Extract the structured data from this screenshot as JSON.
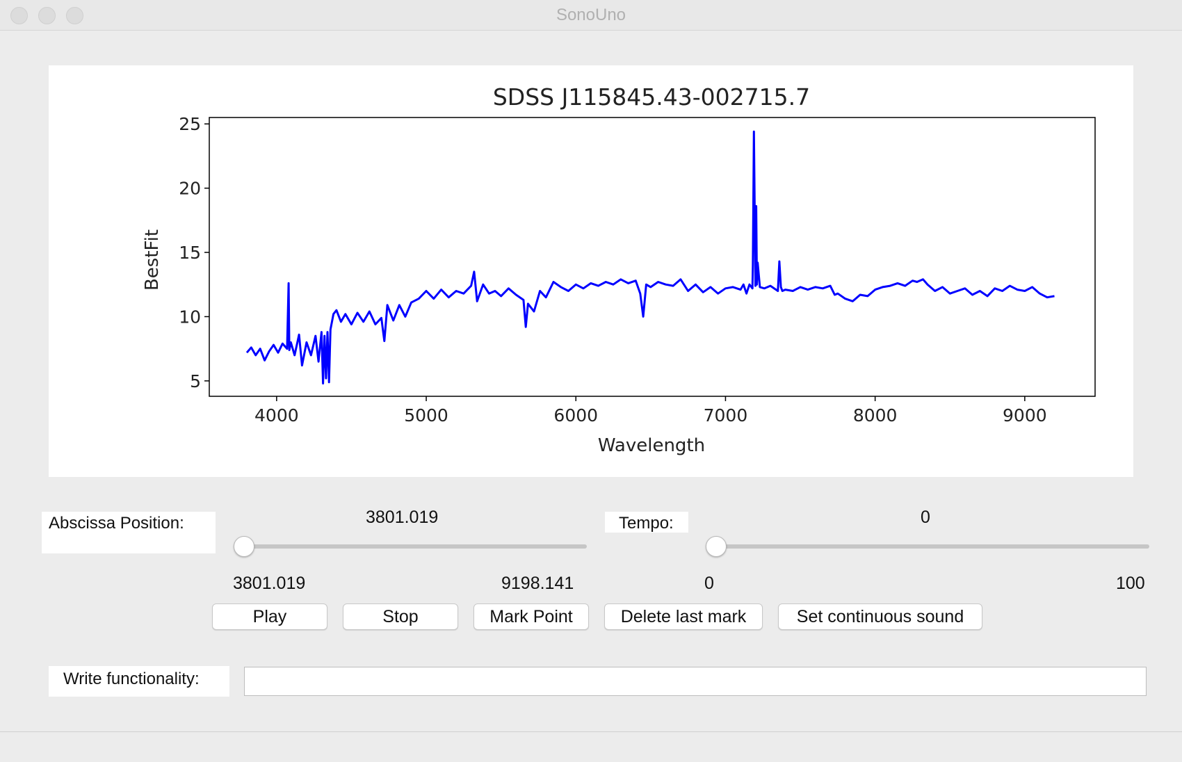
{
  "window": {
    "title": "SonoUno"
  },
  "chart_data": {
    "type": "line",
    "title": "SDSS J115845.43-002715.7",
    "xlabel": "Wavelength",
    "ylabel": "BestFit",
    "xlim": [
      3550,
      9470
    ],
    "ylim": [
      3.8,
      25.5
    ],
    "xticks": [
      4000,
      5000,
      6000,
      7000,
      8000,
      9000
    ],
    "yticks": [
      5,
      10,
      15,
      20,
      25
    ],
    "line_color": "#0000ff",
    "series": [
      {
        "x": [
          3801,
          3830,
          3860,
          3890,
          3920,
          3950,
          3980,
          4010,
          4040,
          4070,
          4080,
          4085,
          4095,
          4120,
          4150,
          4170,
          4200,
          4230,
          4260,
          4280,
          4300,
          4310,
          4320,
          4330,
          4340,
          4350,
          4360,
          4380,
          4400,
          4430,
          4460,
          4500,
          4540,
          4580,
          4620,
          4660,
          4700,
          4720,
          4740,
          4780,
          4820,
          4860,
          4900,
          4950,
          5000,
          5050,
          5100,
          5150,
          5200,
          5250,
          5300,
          5320,
          5340,
          5380,
          5420,
          5460,
          5500,
          5550,
          5600,
          5650,
          5665,
          5680,
          5720,
          5760,
          5800,
          5850,
          5900,
          5950,
          6000,
          6050,
          6100,
          6150,
          6200,
          6250,
          6300,
          6350,
          6400,
          6430,
          6450,
          6470,
          6500,
          6550,
          6600,
          6650,
          6700,
          6750,
          6800,
          6850,
          6900,
          6950,
          7000,
          7050,
          7100,
          7120,
          7140,
          7160,
          7180,
          7183,
          7190,
          7200,
          7205,
          7210,
          7215,
          7230,
          7260,
          7300,
          7350,
          7360,
          7370,
          7380,
          7400,
          7450,
          7500,
          7550,
          7600,
          7650,
          7700,
          7730,
          7750,
          7800,
          7850,
          7900,
          7950,
          8000,
          8050,
          8100,
          8150,
          8200,
          8250,
          8280,
          8320,
          8350,
          8400,
          8450,
          8500,
          8550,
          8600,
          8650,
          8700,
          8750,
          8800,
          8850,
          8900,
          8950,
          9000,
          9050,
          9100,
          9150,
          9198
        ],
        "y": [
          7.2,
          7.6,
          7.0,
          7.5,
          6.6,
          7.3,
          7.8,
          7.2,
          7.9,
          7.5,
          12.6,
          7.4,
          8.0,
          7.0,
          8.6,
          6.2,
          8.0,
          7.0,
          8.5,
          6.5,
          8.8,
          4.8,
          8.5,
          5.2,
          8.8,
          4.9,
          9.0,
          10.2,
          10.5,
          9.6,
          10.2,
          9.4,
          10.3,
          9.6,
          10.4,
          9.4,
          9.9,
          8.1,
          10.9,
          9.7,
          10.9,
          10.0,
          11.1,
          11.4,
          12.0,
          11.4,
          12.1,
          11.5,
          12.0,
          11.8,
          12.4,
          13.5,
          11.2,
          12.5,
          11.8,
          12.0,
          11.6,
          12.2,
          11.7,
          11.3,
          9.2,
          11.0,
          10.4,
          12.0,
          11.5,
          12.7,
          12.3,
          12.0,
          12.5,
          12.2,
          12.6,
          12.4,
          12.7,
          12.5,
          12.9,
          12.6,
          12.8,
          11.8,
          10.0,
          12.5,
          12.3,
          12.7,
          12.5,
          12.4,
          12.9,
          12.0,
          12.5,
          11.9,
          12.3,
          11.8,
          12.2,
          12.3,
          12.1,
          12.5,
          11.8,
          12.5,
          12.2,
          14.0,
          24.4,
          12.4,
          18.6,
          12.5,
          14.2,
          12.3,
          12.2,
          12.4,
          12.0,
          14.3,
          12.3,
          12.0,
          12.1,
          12.0,
          12.3,
          12.1,
          12.3,
          12.2,
          12.4,
          11.7,
          11.8,
          11.4,
          11.2,
          11.7,
          11.6,
          12.1,
          12.3,
          12.4,
          12.6,
          12.4,
          12.8,
          12.7,
          12.9,
          12.5,
          12.0,
          12.3,
          11.8,
          12.0,
          12.2,
          11.7,
          12.0,
          11.6,
          12.2,
          12.0,
          12.4,
          12.1,
          12.0,
          12.3,
          11.8,
          11.5,
          11.6
        ]
      }
    ]
  },
  "abscissa": {
    "label": "Abscissa Position:",
    "current": "3801.019",
    "min": "3801.019",
    "max": "9198.141",
    "fraction": 0.0
  },
  "tempo": {
    "label": "Tempo:",
    "current": "0",
    "min": "0",
    "max": "100",
    "fraction": 0.0
  },
  "buttons": {
    "play": "Play",
    "stop": "Stop",
    "mark": "Mark Point",
    "delete": "Delete last mark",
    "continuous": "Set continuous sound"
  },
  "write": {
    "label": "Write functionality:",
    "value": ""
  }
}
